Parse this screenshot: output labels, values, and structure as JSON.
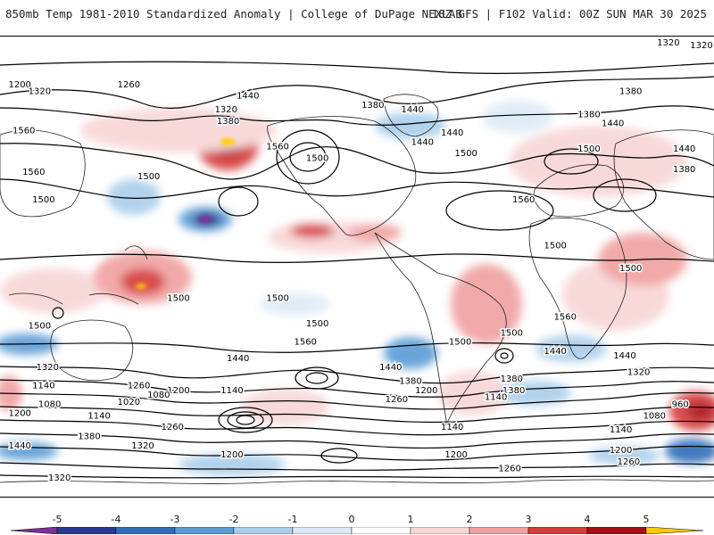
{
  "header": {
    "title": "850mb Temp 1981-2010 Standardized Anomaly | College of DuPage NEXLAB",
    "run_info": "18Z GFS | F102 Valid: 00Z SUN MAR 30 2025"
  },
  "colorbar": {
    "ticks": [
      "-5",
      "-4",
      "-3",
      "-2",
      "-1",
      "0",
      "1",
      "2",
      "3",
      "4",
      "5"
    ],
    "colors": [
      "#7b3294",
      "#283a8c",
      "#2f6db5",
      "#5a9bd5",
      "#a9cdea",
      "#dceaf6",
      "#ffffff",
      "#f8d5d5",
      "#f0a0a0",
      "#d63a3a",
      "#a50f15",
      "#ffcc00"
    ]
  },
  "contours": {
    "labels": [
      {
        "text": "1320",
        "lon": 185,
        "lat": 75
      },
      {
        "text": "1320",
        "lon": 157,
        "lat": 78
      },
      {
        "text": "1200",
        "lon": -170,
        "lat": 58
      },
      {
        "text": "1320",
        "lon": -160,
        "lat": 55
      },
      {
        "text": "1260",
        "lon": -115,
        "lat": 58
      },
      {
        "text": "1560",
        "lon": -168,
        "lat": 38
      },
      {
        "text": "1440",
        "lon": -55,
        "lat": 53
      },
      {
        "text": "1320",
        "lon": -66,
        "lat": 47
      },
      {
        "text": "1380",
        "lon": -65,
        "lat": 42
      },
      {
        "text": "1560",
        "lon": -40,
        "lat": 31
      },
      {
        "text": "1380",
        "lon": 8,
        "lat": 49
      },
      {
        "text": "1440",
        "lon": 28,
        "lat": 47
      },
      {
        "text": "1440",
        "lon": 48,
        "lat": 37
      },
      {
        "text": "1440",
        "lon": 33,
        "lat": 33
      },
      {
        "text": "1380",
        "lon": 138,
        "lat": 55
      },
      {
        "text": "1380",
        "lon": 117,
        "lat": 45
      },
      {
        "text": "1440",
        "lon": 129,
        "lat": 41
      },
      {
        "text": "1500",
        "lon": 55,
        "lat": 28
      },
      {
        "text": "1500",
        "lon": 117,
        "lat": 30
      },
      {
        "text": "1440",
        "lon": 165,
        "lat": 30
      },
      {
        "text": "1380",
        "lon": 165,
        "lat": 21
      },
      {
        "text": "1560",
        "lon": -163,
        "lat": 20
      },
      {
        "text": "1500",
        "lon": -158,
        "lat": 8
      },
      {
        "text": "1500",
        "lon": -105,
        "lat": 18
      },
      {
        "text": "1500",
        "lon": -20,
        "lat": 26
      },
      {
        "text": "1560",
        "lon": 84,
        "lat": 8
      },
      {
        "text": "1500",
        "lon": 100,
        "lat": -12
      },
      {
        "text": "1500",
        "lon": 138,
        "lat": -22
      },
      {
        "text": "1500",
        "lon": -90,
        "lat": -35
      },
      {
        "text": "1500",
        "lon": -40,
        "lat": -35
      },
      {
        "text": "1500",
        "lon": -160,
        "lat": -47
      },
      {
        "text": "1500",
        "lon": -20,
        "lat": -46
      },
      {
        "text": "1500",
        "lon": 52,
        "lat": -54
      },
      {
        "text": "1500",
        "lon": 78,
        "lat": -50
      },
      {
        "text": "1560",
        "lon": -26,
        "lat": -54
      },
      {
        "text": "1560",
        "lon": 105,
        "lat": -43
      },
      {
        "text": "1440",
        "lon": 100,
        "lat": -58
      },
      {
        "text": "1440",
        "lon": 135,
        "lat": -60
      },
      {
        "text": "1440",
        "lon": -60,
        "lat": -61
      },
      {
        "text": "1440",
        "lon": 17,
        "lat": -65
      },
      {
        "text": "1320",
        "lon": -156,
        "lat": -65
      },
      {
        "text": "1320",
        "lon": 142,
        "lat": -67
      },
      {
        "text": "1380",
        "lon": 78,
        "lat": -70
      },
      {
        "text": "1380",
        "lon": 79,
        "lat": -75
      },
      {
        "text": "1140",
        "lon": -158,
        "lat": -73
      },
      {
        "text": "1260",
        "lon": -110,
        "lat": -73
      },
      {
        "text": "1200",
        "lon": -90,
        "lat": -75
      },
      {
        "text": "1140",
        "lon": -63,
        "lat": -75
      },
      {
        "text": "1080",
        "lon": -100,
        "lat": -77
      },
      {
        "text": "1020",
        "lon": -115,
        "lat": -80
      },
      {
        "text": "1080",
        "lon": -155,
        "lat": -81
      },
      {
        "text": "1200",
        "lon": -170,
        "lat": -85
      },
      {
        "text": "1140",
        "lon": -130,
        "lat": -86
      },
      {
        "text": "1260",
        "lon": -93,
        "lat": -91
      },
      {
        "text": "1380",
        "lon": -135,
        "lat": -95
      },
      {
        "text": "1320",
        "lon": -108,
        "lat": -99
      },
      {
        "text": "1200",
        "lon": -63,
        "lat": -103
      },
      {
        "text": "1320",
        "lon": -150,
        "lat": -113
      },
      {
        "text": "1440",
        "lon": -170,
        "lat": -99
      },
      {
        "text": "1260",
        "lon": 20,
        "lat": -79
      },
      {
        "text": "1380",
        "lon": 27,
        "lat": -71
      },
      {
        "text": "1200",
        "lon": 35,
        "lat": -75
      },
      {
        "text": "1140",
        "lon": 70,
        "lat": -78
      },
      {
        "text": "1140",
        "lon": 48,
        "lat": -91
      },
      {
        "text": "1200",
        "lon": 50,
        "lat": -103
      },
      {
        "text": "1260",
        "lon": 77,
        "lat": -109
      },
      {
        "text": "1140",
        "lon": 133,
        "lat": -92
      },
      {
        "text": "1080",
        "lon": 150,
        "lat": -86
      },
      {
        "text": "960",
        "lon": 163,
        "lat": -81
      },
      {
        "text": "1200",
        "lon": 133,
        "lat": -101
      },
      {
        "text": "1260",
        "lon": 137,
        "lat": -106
      }
    ]
  }
}
